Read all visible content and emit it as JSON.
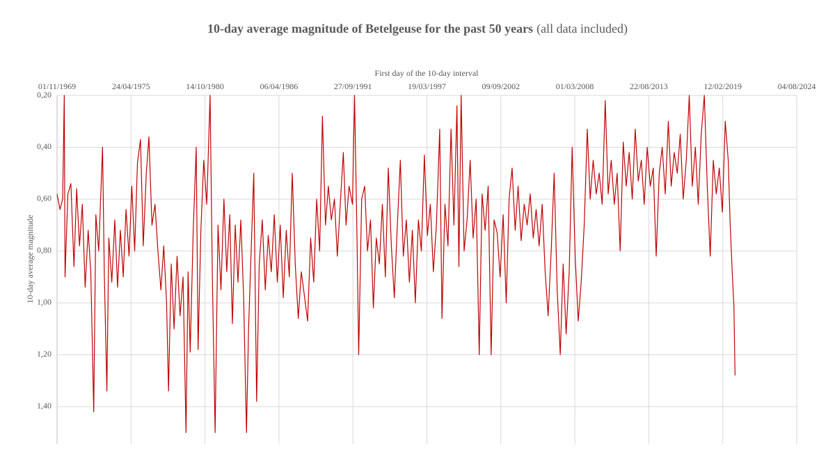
{
  "chart_data": {
    "type": "line",
    "title": "10-day average magnitude of Betelgeuse for the past 50 years",
    "title_note": "(all data included)",
    "x_label": "First day of the 10-day interval",
    "y_label": "10-day average magnitude",
    "color": "#c00000",
    "y_inverted": true,
    "grid": true,
    "xlim": [
      "1969-11-01",
      "2024-08-04"
    ],
    "xticks": [
      {
        "value": "1969-11-01",
        "label": "01/11/1969"
      },
      {
        "value": "1975-04-24",
        "label": "24/04/1975"
      },
      {
        "value": "1980-10-14",
        "label": "14/10/1980"
      },
      {
        "value": "1986-04-06",
        "label": "06/04/1986"
      },
      {
        "value": "1991-09-27",
        "label": "27/09/1991"
      },
      {
        "value": "1997-03-19",
        "label": "19/03/1997"
      },
      {
        "value": "2002-09-09",
        "label": "09/09/2002"
      },
      {
        "value": "2008-03-01",
        "label": "01/03/2008"
      },
      {
        "value": "2013-08-22",
        "label": "22/08/2013"
      },
      {
        "value": "2019-02-12",
        "label": "12/02/2019"
      },
      {
        "value": "2024-08-04",
        "label": "04/08/2024"
      }
    ],
    "ylim": [
      0.2,
      1.545
    ],
    "yticks": [
      {
        "value": 0.2,
        "label": "0,20"
      },
      {
        "value": 0.4,
        "label": "0,40"
      },
      {
        "value": 0.6,
        "label": "0,60"
      },
      {
        "value": 0.8,
        "label": "0,80"
      },
      {
        "value": 1.0,
        "label": "1,00"
      },
      {
        "value": 1.2,
        "label": "1,20"
      },
      {
        "value": 1.4,
        "label": "1,40"
      }
    ],
    "x": [
      "1969-11-01",
      "1970-01-20",
      "1970-04-01",
      "1970-05-15",
      "1970-06-05",
      "1970-08-20",
      "1970-11-10",
      "1971-02-01",
      "1971-04-15",
      "1971-07-01",
      "1971-09-15",
      "1971-12-01",
      "1972-02-20",
      "1972-05-01",
      "1972-07-20",
      "1972-09-15",
      "1972-12-01",
      "1973-03-15",
      "1973-05-01",
      "1973-07-10",
      "1973-09-01",
      "1973-11-20",
      "1974-02-10",
      "1974-04-25",
      "1974-07-10",
      "1974-09-25",
      "1974-12-10",
      "1975-03-01",
      "1975-05-15",
      "1975-08-01",
      "1975-10-15",
      "1976-01-05",
      "1976-03-20",
      "1976-06-10",
      "1976-08-20",
      "1976-11-10",
      "1977-02-01",
      "1977-04-20",
      "1977-07-10",
      "1977-09-25",
      "1977-12-10",
      "1978-02-01",
      "1978-04-15",
      "1978-07-01",
      "1978-09-20",
      "1978-12-10",
      "1979-03-01",
      "1979-05-20",
      "1979-07-15",
      "1979-09-10",
      "1979-12-01",
      "1980-02-20",
      "1980-04-10",
      "1980-06-25",
      "1980-09-10",
      "1980-12-01",
      "1981-03-01",
      "1981-05-01",
      "1981-07-15",
      "1981-10-01",
      "1981-12-20",
      "1982-03-10",
      "1982-05-25",
      "1982-08-15",
      "1982-10-25",
      "1983-01-10",
      "1983-03-25",
      "1983-06-10",
      "1983-08-25",
      "1983-11-10",
      "1984-01-05",
      "1984-03-15",
      "1984-05-25",
      "1984-08-10",
      "1984-10-20",
      "1985-01-10",
      "1985-04-01",
      "1985-06-20",
      "1985-09-10",
      "1985-12-01",
      "1986-02-20",
      "1986-05-10",
      "1986-08-01",
      "1986-10-20",
      "1987-01-10",
      "1987-04-01",
      "1987-06-20",
      "1987-09-10",
      "1987-12-01",
      "1988-03-01",
      "1988-05-20",
      "1988-08-10",
      "1988-11-01",
      "1989-01-20",
      "1989-04-10",
      "1989-06-25",
      "1989-09-15",
      "1989-12-01",
      "1990-02-20",
      "1990-05-15",
      "1990-08-01",
      "1990-10-20",
      "1991-01-10",
      "1991-03-25",
      "1991-06-15",
      "1991-09-15",
      "1991-11-10",
      "1992-01-10",
      "1992-03-01",
      "1992-05-20",
      "1992-08-10",
      "1992-10-25",
      "1993-01-15",
      "1993-04-01",
      "1993-06-20",
      "1993-09-10",
      "1993-12-01",
      "1994-02-20",
      "1994-05-10",
      "1994-08-01",
      "1994-10-20",
      "1995-01-10",
      "1995-04-01",
      "1995-06-20",
      "1995-09-10",
      "1995-12-01",
      "1996-02-20",
      "1996-05-10",
      "1996-08-01",
      "1996-10-20",
      "1997-01-10",
      "1997-04-01",
      "1997-06-20",
      "1997-09-10",
      "1997-12-01",
      "1998-03-01",
      "1998-05-01",
      "1998-07-20",
      "1998-10-10",
      "1999-01-01",
      "1999-03-20",
      "1999-06-10",
      "1999-08-01",
      "1999-10-01",
      "1999-12-20",
      "2000-03-10",
      "2000-06-01",
      "2000-08-20",
      "2000-11-10",
      "2001-02-01",
      "2001-04-20",
      "2001-07-10",
      "2001-10-01",
      "2001-12-20",
      "2002-03-10",
      "2002-06-01",
      "2002-08-20",
      "2002-11-10",
      "2003-02-01",
      "2003-04-20",
      "2003-07-10",
      "2003-10-01",
      "2003-12-20",
      "2004-03-10",
      "2004-06-01",
      "2004-08-20",
      "2004-11-10",
      "2005-02-01",
      "2005-04-20",
      "2005-07-10",
      "2005-10-01",
      "2005-12-20",
      "2006-03-10",
      "2006-06-01",
      "2006-08-20",
      "2006-11-10",
      "2007-02-01",
      "2007-04-20",
      "2007-07-10",
      "2007-10-01",
      "2007-12-20",
      "2008-03-10",
      "2008-06-01",
      "2008-08-20",
      "2008-11-10",
      "2009-02-01",
      "2009-04-20",
      "2009-07-10",
      "2009-10-01",
      "2009-12-20",
      "2010-03-10",
      "2010-06-01",
      "2010-08-20",
      "2010-11-10",
      "2011-02-01",
      "2011-04-20",
      "2011-07-10",
      "2011-10-01",
      "2011-12-20",
      "2012-03-10",
      "2012-06-01",
      "2012-08-20",
      "2012-11-10",
      "2013-02-01",
      "2013-04-20",
      "2013-07-10",
      "2013-10-01",
      "2013-12-20",
      "2014-03-10",
      "2014-06-01",
      "2014-08-20",
      "2014-11-10",
      "2015-02-01",
      "2015-04-20",
      "2015-07-10",
      "2015-10-01",
      "2015-12-20",
      "2016-03-10",
      "2016-06-01",
      "2016-08-20",
      "2016-11-10",
      "2017-02-01",
      "2017-04-20",
      "2017-07-10",
      "2017-10-01",
      "2017-12-20",
      "2018-03-10",
      "2018-06-01",
      "2018-08-20",
      "2018-11-10",
      "2019-02-01",
      "2019-04-20",
      "2019-07-10",
      "2019-09-01",
      "2019-11-01",
      "2019-12-10",
      "2020-01-10"
    ],
    "values": [
      0.58,
      0.64,
      0.6,
      0.2,
      0.9,
      0.58,
      0.54,
      0.86,
      0.56,
      0.78,
      0.62,
      0.94,
      0.72,
      0.88,
      1.42,
      0.66,
      0.8,
      0.4,
      0.88,
      1.34,
      0.75,
      0.92,
      0.68,
      0.94,
      0.72,
      0.9,
      0.64,
      0.82,
      0.55,
      0.8,
      0.46,
      0.37,
      0.78,
      0.5,
      0.36,
      0.7,
      0.62,
      0.8,
      0.95,
      0.78,
      1.0,
      1.34,
      0.85,
      1.1,
      0.82,
      1.05,
      0.9,
      1.5,
      0.88,
      1.19,
      0.72,
      0.4,
      1.18,
      0.72,
      0.45,
      0.62,
      0.2,
      0.9,
      1.5,
      0.7,
      0.95,
      0.6,
      0.88,
      0.66,
      1.08,
      0.7,
      0.92,
      0.68,
      0.98,
      1.5,
      1.1,
      0.8,
      0.5,
      1.38,
      0.85,
      0.68,
      0.95,
      0.74,
      0.88,
      0.66,
      0.92,
      0.7,
      0.98,
      0.72,
      0.9,
      0.5,
      0.85,
      1.06,
      0.88,
      0.98,
      1.07,
      0.75,
      0.92,
      0.6,
      0.8,
      0.28,
      0.7,
      0.55,
      0.68,
      0.6,
      0.82,
      0.62,
      0.42,
      0.7,
      0.55,
      0.62,
      0.2,
      0.7,
      1.2,
      0.6,
      0.55,
      0.8,
      0.68,
      1.02,
      0.75,
      0.85,
      0.62,
      0.9,
      0.48,
      0.78,
      0.98,
      0.7,
      0.45,
      0.82,
      0.68,
      0.92,
      0.72,
      1.0,
      0.68,
      0.8,
      0.43,
      0.74,
      0.62,
      0.88,
      0.7,
      0.33,
      1.06,
      0.62,
      0.78,
      0.33,
      0.7,
      0.24,
      0.86,
      0.2,
      0.8,
      0.68,
      0.45,
      0.75,
      0.6,
      1.2,
      0.58,
      0.72,
      0.55,
      1.2,
      0.68,
      0.73,
      0.9,
      0.66,
      1.0,
      0.6,
      0.48,
      0.72,
      0.55,
      0.76,
      0.62,
      0.7,
      0.58,
      0.75,
      0.64,
      0.78,
      0.62,
      0.88,
      1.05,
      0.8,
      0.5,
      0.95,
      1.2,
      0.85,
      1.12,
      0.88,
      0.4,
      0.82,
      1.07,
      0.92,
      0.7,
      0.33,
      0.6,
      0.45,
      0.58,
      0.5,
      0.62,
      0.22,
      0.58,
      0.45,
      0.62,
      0.5,
      0.8,
      0.38,
      0.55,
      0.42,
      0.6,
      0.33,
      0.53,
      0.45,
      0.62,
      0.4,
      0.55,
      0.48,
      0.82,
      0.5,
      0.4,
      0.58,
      0.3,
      0.55,
      0.42,
      0.5,
      0.35,
      0.6,
      0.45,
      0.2,
      0.55,
      0.4,
      0.62,
      0.35,
      0.2,
      0.55,
      0.82,
      0.45,
      0.58,
      0.48,
      0.65,
      0.3,
      0.45,
      0.7,
      0.9,
      1.01,
      1.28
    ]
  }
}
